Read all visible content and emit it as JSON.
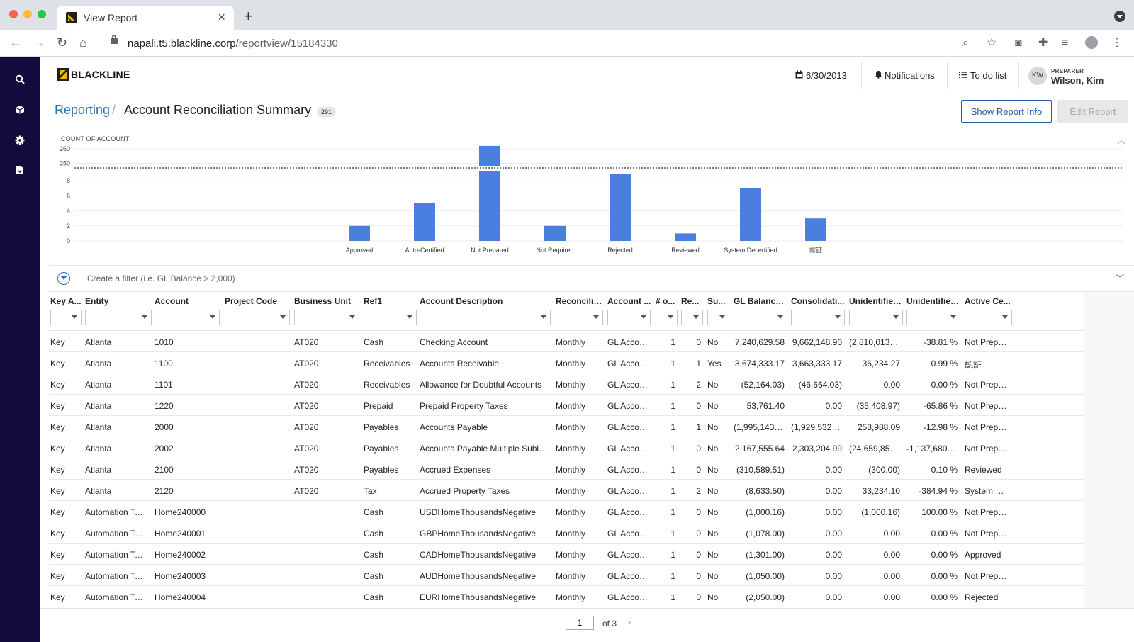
{
  "browser": {
    "tab_title": "View Report",
    "url_host": "napali.t5.blackline.corp",
    "url_path": "/reportview/15184330"
  },
  "app": {
    "logo_text": "BLACKLINE",
    "sidebar_icons": [
      "search-icon",
      "cube-icon",
      "gear-icon",
      "document-icon"
    ],
    "period_date": "6/30/2013",
    "notifications_label": "Notifications",
    "todo_label": "To do list",
    "user": {
      "initials": "KW",
      "role": "PREPARER",
      "name": "Wilson, Kim"
    },
    "accent_color": "#2f6fb5",
    "sidebar_color": "#150a3c"
  },
  "page": {
    "breadcrumb_root": "Reporting",
    "breadcrumb_current": "Account Reconciliation Summary",
    "count_badge": "291",
    "show_report_info": "Show Report Info",
    "edit_report": "Edit Report"
  },
  "chart_data": {
    "type": "bar",
    "ylabel": "COUNT OF ACCOUNT",
    "axis_break": true,
    "lower_ticks": [
      "0",
      "2",
      "4",
      "6",
      "8"
    ],
    "upper_ticks": [
      "250",
      "260"
    ],
    "categories": [
      "Approved",
      "Auto-Certified",
      "Not Prepared",
      "Not Required",
      "Rejected",
      "Reviewed",
      "System Decertified",
      "認証"
    ],
    "values": [
      2,
      5,
      262,
      2,
      9,
      1,
      7,
      3
    ],
    "bar_color": "#4a7fe0",
    "grid": true
  },
  "filter": {
    "placeholder": "Create a filter (i.e. GL Balance > 2,000)"
  },
  "table": {
    "columns": [
      "Key A...",
      "Entity",
      "Account",
      "Project Code",
      "Business Unit",
      "Ref1",
      "Account Description",
      "Reconcilia...",
      "Account ...",
      "# o...",
      "Re...",
      "Su...",
      "GL Balance ...",
      "Consolidati...",
      "Unidentified...",
      "Unidentified...",
      "Active Ce..."
    ],
    "rows": [
      [
        "Key",
        "Atlanta",
        "1010",
        "",
        "AT020",
        "Cash",
        "Checking Account",
        "Monthly",
        "GL Account",
        "1",
        "0",
        "No",
        "7,240,629.58",
        "9,662,148.90",
        "(2,810,013.39)",
        "-38.81 %",
        "Not Prepar..."
      ],
      [
        "Key",
        "Atlanta",
        "1100",
        "",
        "AT020",
        "Receivables",
        "Accounts Receivable",
        "Monthly",
        "GL Account",
        "1",
        "1",
        "Yes",
        "3,674,333.17",
        "3,663,333.17",
        "36,234.27",
        "0.99 %",
        "認証"
      ],
      [
        "Key",
        "Atlanta",
        "1101",
        "",
        "AT020",
        "Receivables",
        "Allowance for Doubtful Accounts",
        "Monthly",
        "GL Account",
        "1",
        "2",
        "No",
        "(52,164.03)",
        "(46,664.03)",
        "0.00",
        "0.00 %",
        "Not Prepar..."
      ],
      [
        "Key",
        "Atlanta",
        "1220",
        "",
        "AT020",
        "Prepaid",
        "Prepaid Property Taxes",
        "Monthly",
        "GL Account",
        "1",
        "0",
        "No",
        "53,761.40",
        "0.00",
        "(35,408.97)",
        "-65.86 %",
        "Not Prepar..."
      ],
      [
        "Key",
        "Atlanta",
        "2000",
        "",
        "AT020",
        "Payables",
        "Accounts Payable",
        "Monthly",
        "GL Account",
        "1",
        "1",
        "No",
        "(1,995,143.94)",
        "(1,929,532.03)",
        "258,988.09",
        "-12.98 %",
        "Not Prepar..."
      ],
      [
        "Key",
        "Atlanta",
        "2002",
        "",
        "AT020",
        "Payables",
        "Accounts Payable Multiple Subledg...",
        "Monthly",
        "GL Account",
        "1",
        "0",
        "No",
        "2,167,555.64",
        "2,303,204.99",
        "(24,659,856,...",
        "-1,137,680.4...",
        "Not Prepar..."
      ],
      [
        "Key",
        "Atlanta",
        "2100",
        "",
        "AT020",
        "Payables",
        "Accrued Expenses",
        "Monthly",
        "GL Account",
        "1",
        "0",
        "No",
        "(310,589.51)",
        "0.00",
        "(300.00)",
        "0.10 %",
        "Reviewed"
      ],
      [
        "Key",
        "Atlanta",
        "2120",
        "",
        "AT020",
        "Tax",
        "Accrued Property Taxes",
        "Monthly",
        "GL Account",
        "1",
        "2",
        "No",
        "(8,633.50)",
        "0.00",
        "33,234.10",
        "-384.94 %",
        "System De..."
      ],
      [
        "Key",
        "Automation Test...",
        "Home240000",
        "",
        "",
        "Cash",
        "USDHomeThousandsNegative",
        "Monthly",
        "GL Account",
        "1",
        "0",
        "No",
        "(1,000.16)",
        "0.00",
        "(1,000.16)",
        "100.00 %",
        "Not Prepar..."
      ],
      [
        "Key",
        "Automation Test...",
        "Home240001",
        "",
        "",
        "Cash",
        "GBPHomeThousandsNegative",
        "Monthly",
        "GL Account",
        "1",
        "0",
        "No",
        "(1,078.00)",
        "0.00",
        "0.00",
        "0.00 %",
        "Not Prepar..."
      ],
      [
        "Key",
        "Automation Test...",
        "Home240002",
        "",
        "",
        "Cash",
        "CADHomeThousandsNegative",
        "Monthly",
        "GL Account",
        "1",
        "0",
        "No",
        "(1,301.00)",
        "0.00",
        "0.00",
        "0.00 %",
        "Approved"
      ],
      [
        "Key",
        "Automation Test...",
        "Home240003",
        "",
        "",
        "Cash",
        "AUDHomeThousandsNegative",
        "Monthly",
        "GL Account",
        "1",
        "0",
        "No",
        "(1,050.00)",
        "0.00",
        "0.00",
        "0.00 %",
        "Not Prepar..."
      ],
      [
        "Key",
        "Automation Test...",
        "Home240004",
        "",
        "",
        "Cash",
        "EURHomeThousandsNegative",
        "Monthly",
        "GL Account",
        "1",
        "0",
        "No",
        "(2,050.00)",
        "0.00",
        "0.00",
        "0.00 %",
        "Rejected"
      ]
    ]
  },
  "pager": {
    "current_page": "1",
    "of_label": "of 3"
  }
}
